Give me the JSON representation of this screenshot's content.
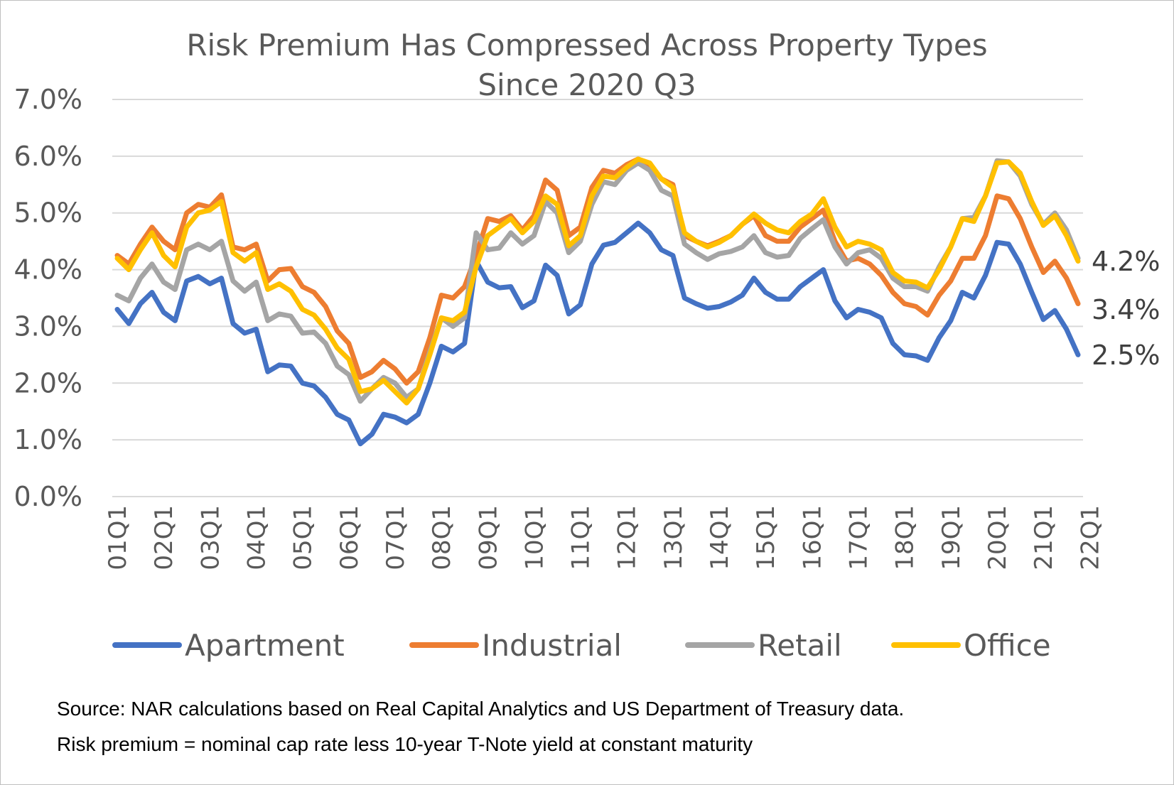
{
  "chart_data": {
    "type": "line",
    "title": "Risk Premium Has Compressed Across Property Types Since 2020 Q3",
    "title_lines": [
      "Risk Premium Has Compressed Across Property Types",
      "Since 2020 Q3"
    ],
    "xlabel": "",
    "ylabel": "",
    "ylim": [
      0,
      7
    ],
    "yticks": [
      "0.0%",
      "1.0%",
      "2.0%",
      "3.0%",
      "4.0%",
      "5.0%",
      "6.0%",
      "7.0%"
    ],
    "xtick_labels": [
      "01Q1",
      "02Q1",
      "03Q1",
      "04Q1",
      "05Q1",
      "06Q1",
      "07Q1",
      "08Q1",
      "09Q1",
      "10Q1",
      "11Q1",
      "12Q1",
      "13Q1",
      "14Q1",
      "15Q1",
      "16Q1",
      "17Q1",
      "18Q1",
      "19Q1",
      "20Q1",
      "21Q1",
      "22Q1"
    ],
    "grid": true,
    "legend_position": "bottom",
    "end_labels": [
      "4.2%",
      "3.4%",
      "2.5%"
    ],
    "series": [
      {
        "name": "Apartment",
        "color": "#4472C4",
        "values": [
          3.3,
          3.05,
          3.4,
          3.6,
          3.25,
          3.1,
          3.8,
          3.88,
          3.75,
          3.85,
          3.05,
          2.88,
          2.95,
          2.2,
          2.32,
          2.3,
          2.0,
          1.95,
          1.75,
          1.45,
          1.35,
          0.93,
          1.1,
          1.45,
          1.4,
          1.3,
          1.45,
          2.0,
          2.65,
          2.55,
          2.7,
          4.15,
          3.78,
          3.68,
          3.7,
          3.33,
          3.45,
          4.08,
          3.9,
          3.22,
          3.38,
          4.1,
          4.43,
          4.48,
          4.65,
          4.82,
          4.65,
          4.35,
          4.25,
          3.5,
          3.4,
          3.32,
          3.35,
          3.43,
          3.55,
          3.85,
          3.6,
          3.48,
          3.48,
          3.7,
          3.85,
          4.0,
          3.45,
          3.15,
          3.3,
          3.25,
          3.15,
          2.7,
          2.5,
          2.48,
          2.4,
          2.8,
          3.1,
          3.6,
          3.5,
          3.9,
          4.48,
          4.45,
          4.1,
          3.6,
          3.12,
          3.28,
          2.95,
          2.5
        ]
      },
      {
        "name": "Industrial",
        "color": "#ED7D31",
        "values": [
          4.25,
          4.1,
          4.45,
          4.75,
          4.5,
          4.35,
          5.0,
          5.15,
          5.1,
          5.32,
          4.4,
          4.35,
          4.45,
          3.8,
          4.0,
          4.02,
          3.7,
          3.6,
          3.35,
          2.92,
          2.7,
          2.1,
          2.2,
          2.4,
          2.25,
          2.0,
          2.2,
          2.8,
          3.55,
          3.5,
          3.7,
          4.25,
          4.9,
          4.85,
          4.95,
          4.7,
          4.95,
          5.58,
          5.4,
          4.6,
          4.75,
          5.45,
          5.75,
          5.7,
          5.85,
          5.95,
          5.85,
          5.6,
          5.5,
          4.6,
          4.5,
          4.42,
          4.5,
          4.6,
          4.8,
          4.95,
          4.6,
          4.5,
          4.5,
          4.75,
          4.9,
          5.05,
          4.5,
          4.15,
          4.2,
          4.1,
          3.9,
          3.6,
          3.4,
          3.35,
          3.2,
          3.55,
          3.8,
          4.2,
          4.2,
          4.6,
          5.3,
          5.25,
          4.9,
          4.4,
          3.95,
          4.15,
          3.85,
          3.4
        ]
      },
      {
        "name": "Retail",
        "color": "#A5A5A5",
        "values": [
          3.55,
          3.45,
          3.85,
          4.1,
          3.78,
          3.65,
          4.35,
          4.45,
          4.35,
          4.5,
          3.8,
          3.62,
          3.78,
          3.1,
          3.22,
          3.18,
          2.88,
          2.9,
          2.7,
          2.3,
          2.15,
          1.68,
          1.9,
          2.1,
          2.0,
          1.75,
          1.9,
          2.55,
          3.15,
          3.0,
          3.15,
          4.65,
          4.35,
          4.38,
          4.65,
          4.45,
          4.6,
          5.2,
          5.0,
          4.3,
          4.5,
          5.15,
          5.55,
          5.5,
          5.75,
          5.88,
          5.75,
          5.4,
          5.3,
          4.45,
          4.3,
          4.18,
          4.28,
          4.32,
          4.4,
          4.6,
          4.3,
          4.22,
          4.25,
          4.55,
          4.72,
          4.88,
          4.4,
          4.1,
          4.3,
          4.35,
          4.2,
          3.85,
          3.7,
          3.7,
          3.62,
          4.05,
          4.4,
          4.9,
          4.92,
          5.3,
          5.92,
          5.9,
          5.65,
          5.15,
          4.8,
          5.0,
          4.7,
          4.2
        ]
      },
      {
        "name": "Office",
        "color": "#FFC000",
        "values": [
          4.2,
          4.0,
          4.35,
          4.65,
          4.25,
          4.05,
          4.75,
          5.0,
          5.05,
          5.2,
          4.3,
          4.15,
          4.3,
          3.65,
          3.75,
          3.62,
          3.3,
          3.2,
          2.95,
          2.62,
          2.42,
          1.85,
          1.9,
          2.05,
          1.85,
          1.65,
          1.9,
          2.5,
          3.15,
          3.1,
          3.25,
          4.05,
          4.6,
          4.75,
          4.9,
          4.65,
          4.85,
          5.3,
          5.15,
          4.42,
          4.6,
          5.3,
          5.65,
          5.62,
          5.8,
          5.95,
          5.88,
          5.6,
          5.45,
          4.65,
          4.5,
          4.4,
          4.48,
          4.6,
          4.8,
          4.98,
          4.82,
          4.7,
          4.65,
          4.85,
          4.98,
          5.25,
          4.75,
          4.4,
          4.5,
          4.45,
          4.35,
          3.95,
          3.8,
          3.78,
          3.68,
          4.0,
          4.4,
          4.9,
          4.85,
          5.3,
          5.88,
          5.9,
          5.7,
          5.2,
          4.78,
          4.95,
          4.6,
          4.15
        ]
      }
    ]
  },
  "source": {
    "line1": "Source: NAR calculations based on Real Capital Analytics and US Department of Treasury data.",
    "line2": "Risk premium = nominal cap rate less 10-year T-Note yield at constant maturity"
  }
}
